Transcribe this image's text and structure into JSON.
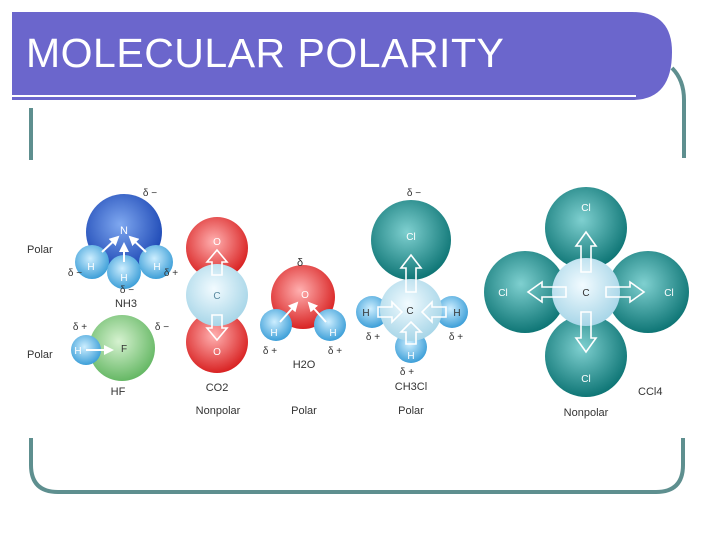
{
  "slide": {
    "title": "MOLECULAR POLARITY",
    "colors": {
      "title_bar": "#6b66cc",
      "frame_line": "#5e8f8f",
      "nitrogen": "#2a5ec9",
      "hydrogen": "#58b6e6",
      "fluorine": "#7cc47a",
      "oxygen": "#e23a3a",
      "carbon": "#c8e8f2",
      "chlorine": "#1a8a8a"
    }
  },
  "molecules": {
    "nh3": {
      "formula": "NH3",
      "polarity": "Polar",
      "central": "N",
      "h_left": "H",
      "h_mid": "H",
      "h_right": "H",
      "d_top": "δ −",
      "d_left": "δ −",
      "d_right": "δ +",
      "d_bottom": "δ −"
    },
    "hf": {
      "formula": "HF",
      "polarity": "Polar",
      "h": "H",
      "f": "F",
      "d_plus": "δ +",
      "d_minus": "δ −"
    },
    "co2": {
      "formula": "CO2",
      "polarity": "Nonpolar",
      "top": "O",
      "center": "C",
      "bottom": "O"
    },
    "h2o": {
      "formula": "H2O",
      "polarity": "Polar",
      "o": "O",
      "h_left": "H",
      "h_right": "H",
      "d_top": "δ",
      "d_left": "δ +",
      "d_right": "δ +"
    },
    "ch3cl": {
      "formula": "CH3Cl",
      "polarity": "Polar",
      "cl": "Cl",
      "c": "C",
      "h_left": "H",
      "h_right": "H",
      "h_bottom": "H",
      "d_top": "δ −",
      "d_left": "δ +",
      "d_right": "δ +",
      "d_bottom": "δ +"
    },
    "ccl4": {
      "formula": "CCl4",
      "polarity": "Nonpolar",
      "c": "C",
      "cl_top": "Cl",
      "cl_left": "Cl",
      "cl_right": "Cl",
      "cl_bottom": "Cl"
    }
  }
}
